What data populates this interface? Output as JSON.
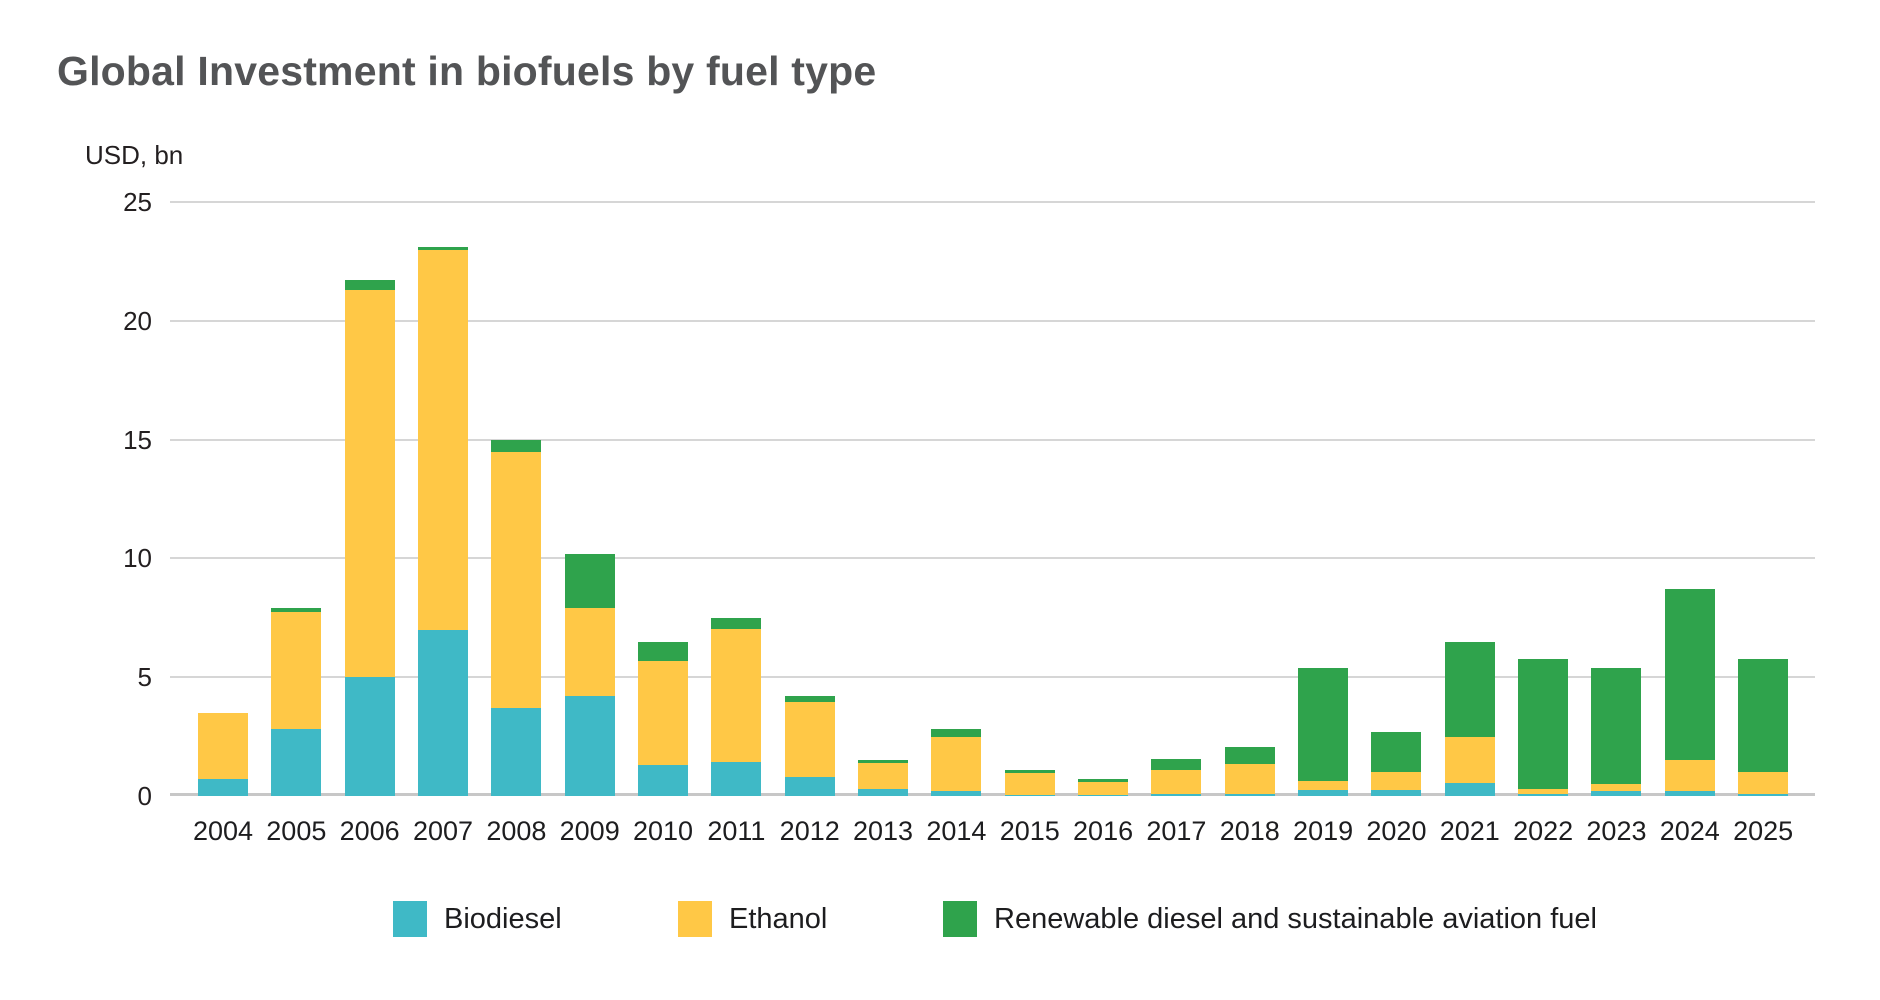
{
  "title": "Global Investment in biofuels by fuel type",
  "y_axis": {
    "label": "USD, bn",
    "ticks": [
      25,
      20,
      15,
      10,
      5,
      0
    ]
  },
  "legend": [
    {
      "id": "biodiesel",
      "label": "Biodiesel",
      "color": "#3fb9c6"
    },
    {
      "id": "ethanol",
      "label": "Ethanol",
      "color": "#ffc846"
    },
    {
      "id": "renewable-diesel-saf",
      "label": "Renewable diesel and sustainable aviation fuel",
      "color": "#2fa34c"
    }
  ],
  "chart_data": {
    "type": "bar",
    "stacked": true,
    "title": "Global Investment in biofuels by fuel type",
    "xlabel": "",
    "ylabel": "USD, bn",
    "ylim": [
      0,
      25
    ],
    "grid": true,
    "legend_position": "bottom",
    "categories": [
      "2004",
      "2005",
      "2006",
      "2007",
      "2008",
      "2009",
      "2010",
      "2011",
      "2012",
      "2013",
      "2014",
      "2015",
      "2016",
      "2017",
      "2018",
      "2019",
      "2020",
      "2021",
      "2022",
      "2023",
      "2024",
      "2025"
    ],
    "series": [
      {
        "name": "Biodiesel",
        "color": "#3fb9c6",
        "values": [
          0.7,
          2.8,
          5.0,
          7.0,
          3.7,
          4.2,
          1.3,
          1.45,
          0.8,
          0.3,
          0.2,
          0.05,
          0.05,
          0.1,
          0.1,
          0.25,
          0.25,
          0.55,
          0.1,
          0.2,
          0.2,
          0.1
        ]
      },
      {
        "name": "Ethanol",
        "color": "#ffc846",
        "values": [
          2.8,
          4.95,
          16.3,
          16.0,
          10.8,
          3.7,
          4.4,
          5.6,
          3.15,
          1.1,
          2.3,
          0.9,
          0.55,
          1.0,
          1.25,
          0.4,
          0.75,
          1.95,
          0.2,
          0.3,
          1.3,
          0.9
        ]
      },
      {
        "name": "Renewable diesel and sustainable aviation fuel",
        "color": "#2fa34c",
        "values": [
          0,
          0.15,
          0.4,
          0.1,
          0.5,
          2.3,
          0.8,
          0.45,
          0.25,
          0.1,
          0.3,
          0.15,
          0.1,
          0.45,
          0.7,
          4.75,
          1.7,
          4.0,
          5.45,
          4.9,
          7.2,
          4.75
        ]
      }
    ]
  }
}
